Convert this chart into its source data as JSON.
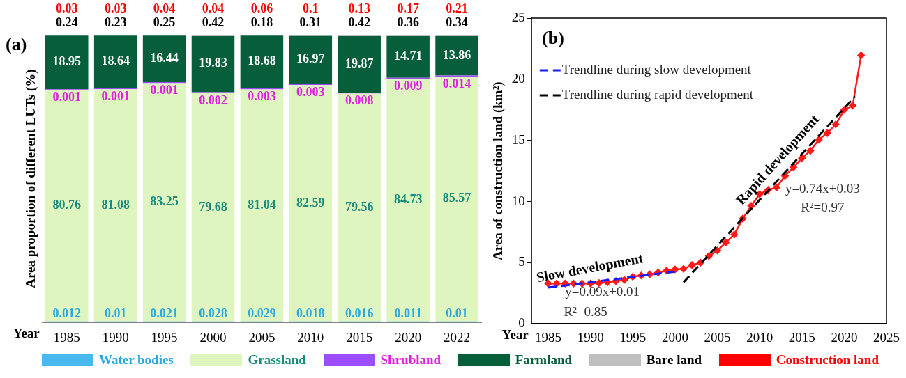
{
  "chart_data": [
    {
      "type": "bar",
      "stacked": true,
      "ylabel": "Area proportion of different LUTs (%)",
      "xlabel": "Year",
      "annotations": [
        "(a)"
      ],
      "categories": [
        "1985",
        "1990",
        "1995",
        "2000",
        "2005",
        "2010",
        "2015",
        "2020",
        "2022"
      ],
      "ylim": [
        0,
        100.5
      ],
      "tick_labels": "x",
      "data_labels": true,
      "legend": "bottom",
      "grid": false,
      "series": [
        {
          "name": "Water bodies",
          "color": "#4ab8f0",
          "values": [
            0.012,
            0.01,
            0.021,
            0.028,
            0.029,
            0.018,
            0.016,
            0.011,
            0.01
          ]
        },
        {
          "name": "Grassland",
          "color": "#dff5c0",
          "values": [
            80.76,
            81.08,
            83.25,
            79.68,
            81.04,
            82.59,
            79.56,
            84.73,
            85.57
          ]
        },
        {
          "name": "Shrubland",
          "color": "#9b4dff",
          "values": [
            0.001,
            0.001,
            0.001,
            0.002,
            0.003,
            0.003,
            0.008,
            0.009,
            0.014
          ]
        },
        {
          "name": "Farmland",
          "color": "#075e3b",
          "values": [
            18.95,
            18.64,
            16.44,
            19.83,
            18.68,
            16.97,
            19.87,
            14.71,
            13.86
          ]
        },
        {
          "name": "Bare land",
          "color": "#bfbfbf",
          "values": [
            0.24,
            0.23,
            0.25,
            0.42,
            0.18,
            0.31,
            0.42,
            0.36,
            0.34
          ]
        },
        {
          "name": "Construction land",
          "color": "#ff0000",
          "values": [
            0.03,
            0.03,
            0.04,
            0.04,
            0.06,
            0.1,
            0.13,
            0.17,
            0.21
          ]
        }
      ]
    },
    {
      "type": "line",
      "ylabel": "Area of construction land (km²)",
      "xlabel": "Year",
      "legend": "top left",
      "grid": false,
      "xlim": [
        1983,
        2025
      ],
      "xticks": [
        1985,
        1990,
        1995,
        2000,
        2005,
        2010,
        2015,
        2020,
        2025
      ],
      "ylim": [
        0,
        25
      ],
      "yticks": [
        0,
        5,
        10,
        15,
        20,
        25
      ],
      "annotations": [
        "(b)",
        "Slow development",
        "Rapid development",
        "y=0.09x+0.01",
        "R²=0.85",
        "y=0.74x+0.03",
        "R²=0.97"
      ],
      "series": [
        {
          "type": "line",
          "name": "Trendline during slow development",
          "color": "#1a1aff",
          "line_style": "dashed",
          "marker": "none",
          "x": [
            1985,
            2000
          ],
          "values": [
            2.97,
            4.27
          ]
        },
        {
          "type": "line",
          "name": "Trendline during rapid development",
          "color": "#000000",
          "line_style": "dashed",
          "marker": "none",
          "x": [
            2001,
            2021.3
          ],
          "values": [
            3.4,
            18.6
          ]
        },
        {
          "type": "line",
          "color": "#ff1a1a",
          "line_style": "solid",
          "marker": "diamond",
          "x": [
            1985,
            1986,
            1987,
            1988,
            1989,
            1990,
            1991,
            1992,
            1993,
            1994,
            1995,
            1996,
            1997,
            1998,
            1999,
            2000,
            2001,
            2002,
            2003,
            2004,
            2005,
            2006,
            2007,
            2008,
            2009,
            2010,
            2011,
            2012,
            2013,
            2014,
            2015,
            2016,
            2017,
            2018,
            2019,
            2020,
            2021,
            2022
          ],
          "values": [
            3.3,
            3.3,
            3.3,
            3.3,
            3.3,
            3.3,
            3.34,
            3.4,
            3.5,
            3.6,
            3.85,
            3.95,
            4.05,
            4.2,
            4.35,
            4.45,
            4.5,
            4.8,
            5.0,
            5.55,
            6.0,
            6.65,
            7.3,
            8.6,
            9.65,
            10.6,
            10.95,
            11.15,
            12.1,
            12.8,
            13.55,
            14.15,
            15.05,
            15.6,
            16.3,
            17.5,
            17.85,
            21.95
          ]
        }
      ]
    }
  ]
}
